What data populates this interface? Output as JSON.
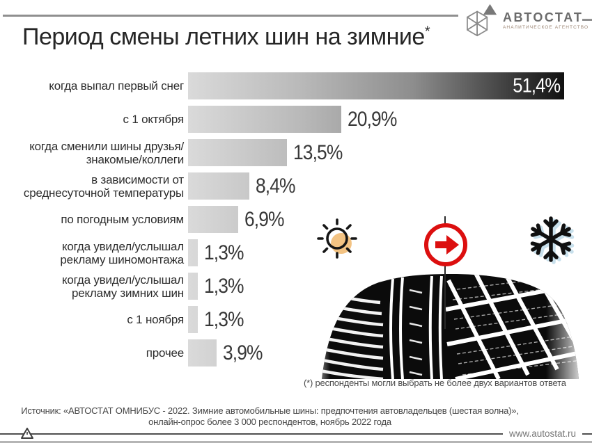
{
  "slide": {
    "title": "Период смены летних шин на зимние",
    "title_footnote_marker": "*"
  },
  "logo": {
    "name": "АВТОСТАТ",
    "subtitle": "АНАЛИТИЧЕСКОЕ АГЕНТСТВО"
  },
  "chart_data": {
    "type": "bar",
    "orientation": "horizontal",
    "title": "Период смены летних шин на зимние*",
    "xlabel": "",
    "ylabel": "",
    "unit": "%",
    "xlim": [
      0,
      51.4
    ],
    "grid": false,
    "legend": false,
    "bar_gradient": [
      "#dadada",
      "#111111"
    ],
    "categories": [
      "когда выпал первый снег",
      "с 1 октября",
      "когда сменили шины друзья/знакомые/коллеги",
      "в зависимости от среднесуточной температуры",
      "по погодным условиям",
      "когда увидел/услышал рекламу шиномонтажа",
      "когда увидел/услышал рекламу зимних шин",
      "с 1 ноября",
      "прочее"
    ],
    "category_lines": [
      [
        "когда выпал первый снег"
      ],
      [
        "с 1 октября"
      ],
      [
        "когда сменили шины друзья/",
        "знакомые/коллеги"
      ],
      [
        "в зависимости от",
        "среднесуточной температуры"
      ],
      [
        "по погодным условиям"
      ],
      [
        "когда увидел/услышал",
        "рекламу шиномонтажа"
      ],
      [
        "когда увидел/услышал",
        "рекламу зимних шин"
      ],
      [
        "с 1 ноября"
      ],
      [
        "прочее"
      ]
    ],
    "values": [
      51.4,
      20.9,
      13.5,
      8.4,
      6.9,
      1.3,
      1.3,
      1.3,
      3.9
    ],
    "value_labels": [
      "51,4%",
      "20,9%",
      "13,5%",
      "8,4%",
      "6,9%",
      "1,3%",
      "1,3%",
      "1,3%",
      "3,9%"
    ]
  },
  "icons": {
    "sun": "sun-icon",
    "arrow": "arrow-right-icon",
    "snowflake": "snowflake-icon",
    "colors": {
      "sun_fill": "#f3c383",
      "outline_black": "#151515",
      "arrow_red": "#dc0f0f",
      "snowflake_shadow": "#c8e0ec"
    }
  },
  "footnote": "(*) респонденты могли выбрать не более двух вариантов ответа",
  "source": {
    "line1": "Источник: «АВТОСТАТ ОМНИБУС - 2022. Зимние автомобильные шины: предпочтения автовладельцев (шестая волна)»,",
    "line2": "онлайн-опрос более 3 000 респондентов, ноябрь 2022 года"
  },
  "footer": {
    "website": "www.autostat.ru"
  }
}
